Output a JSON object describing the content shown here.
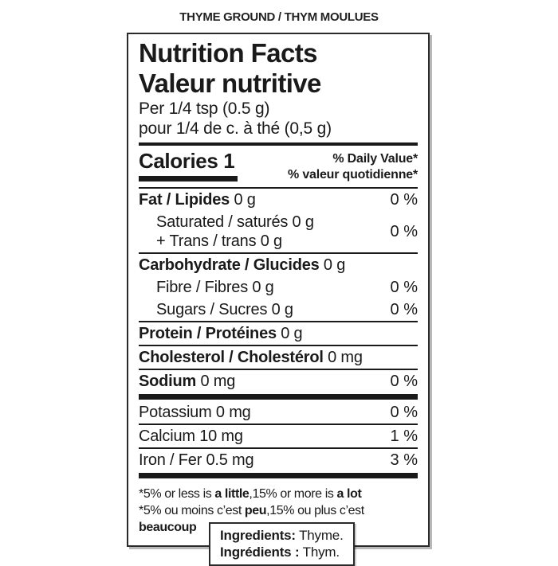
{
  "page_title": "THYME GROUND / THYM MOULUES",
  "label": {
    "title_en": "Nutrition Facts",
    "title_fr": "Valeur nutritive",
    "serving_en": "Per 1/4 tsp (0.5 g)",
    "serving_fr": "pour 1/4 de c. à thé (0,5 g)",
    "calories": "Calories 1",
    "daily_value_en": "% Daily Value*",
    "daily_value_fr": "% valeur quotidienne*",
    "rows": [
      {
        "lines": [
          {
            "bold": "Fat / Lipides",
            "text": "0 g"
          }
        ],
        "pct": "0 %",
        "sep": "none"
      },
      {
        "lines": [
          {
            "text": "Saturated / saturés 0 g"
          },
          {
            "text": "+ Trans / trans 0 g"
          }
        ],
        "indent": true,
        "pct": "0 %",
        "sep": "thin"
      },
      {
        "lines": [
          {
            "bold": "Carbohydrate / Glucides",
            "text": "0 g"
          }
        ],
        "pct": "",
        "sep": "none"
      },
      {
        "lines": [
          {
            "text": "Fibre / Fibres 0 g"
          }
        ],
        "indent": true,
        "pct": "0 %",
        "sep": "none"
      },
      {
        "lines": [
          {
            "text": "Sugars / Sucres 0 g"
          }
        ],
        "indent": true,
        "pct": "0 %",
        "sep": "thin"
      },
      {
        "lines": [
          {
            "bold": "Protein / Protéines",
            "text": "0 g"
          }
        ],
        "pct": "",
        "sep": "thin"
      },
      {
        "lines": [
          {
            "bold": "Cholesterol / Cholestérol",
            "text": "0 mg"
          }
        ],
        "pct": "",
        "sep": "thin"
      },
      {
        "lines": [
          {
            "bold": "Sodium",
            "text": "0 mg"
          }
        ],
        "pct": "0 %",
        "sep": "thick"
      },
      {
        "lines": [
          {
            "text": "Potassium 0 mg"
          }
        ],
        "pct": "0 %",
        "sep": "thin"
      },
      {
        "lines": [
          {
            "text": "Calcium 10 mg"
          }
        ],
        "pct": "1 %",
        "sep": "thin"
      },
      {
        "lines": [
          {
            "text": "Iron / Fer 0.5 mg"
          }
        ],
        "pct": "3 %",
        "sep": "thick"
      }
    ],
    "footnotes": [
      {
        "segments": [
          {
            "text": "*5% or less is "
          },
          {
            "text": "a little",
            "bold": true
          },
          {
            "text": ",15% or more is "
          },
          {
            "text": "a lot",
            "bold": true
          }
        ]
      },
      {
        "segments": [
          {
            "text": "*5% ou moins c’est "
          },
          {
            "text": "peu",
            "bold": true
          },
          {
            "text": ",15% ou plus c’est "
          },
          {
            "text": "beaucoup",
            "bold": true
          }
        ]
      }
    ]
  },
  "ingredients": {
    "en_label": "Ingredients:",
    "en_value": "Thyme.",
    "fr_label": "Ingrédients :",
    "fr_value": "Thym."
  }
}
